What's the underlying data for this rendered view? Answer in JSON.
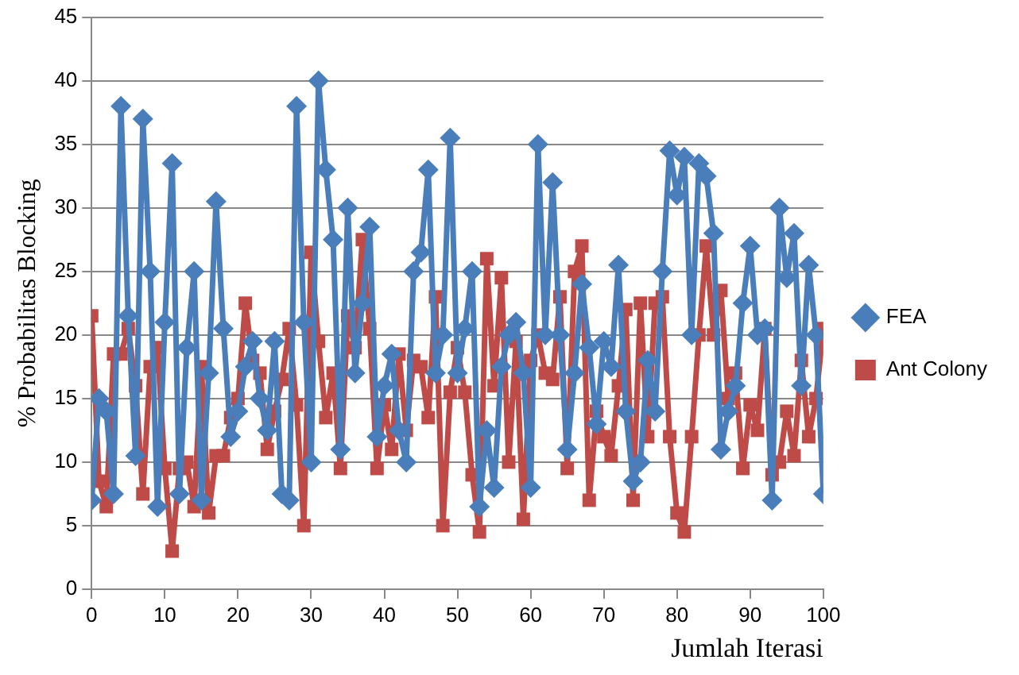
{
  "chart_data": {
    "type": "line",
    "xlabel": "Jumlah Iterasi",
    "ylabel": "% Probabilitas Blocking",
    "x": [
      0,
      1,
      2,
      3,
      4,
      5,
      6,
      7,
      8,
      9,
      10,
      11,
      12,
      13,
      14,
      15,
      16,
      17,
      18,
      19,
      20,
      21,
      22,
      23,
      24,
      25,
      26,
      27,
      28,
      29,
      30,
      31,
      32,
      33,
      34,
      35,
      36,
      37,
      38,
      39,
      40,
      41,
      42,
      43,
      44,
      45,
      46,
      47,
      48,
      49,
      50,
      51,
      52,
      53,
      54,
      55,
      56,
      57,
      58,
      59,
      60,
      61,
      62,
      63,
      64,
      65,
      66,
      67,
      68,
      69,
      70,
      71,
      72,
      73,
      74,
      75,
      76,
      77,
      78,
      79,
      80,
      81,
      82,
      83,
      84,
      85,
      86,
      87,
      88,
      89,
      90,
      91,
      92,
      93,
      94,
      95,
      96,
      97,
      98,
      99,
      100
    ],
    "series": [
      {
        "name": "FEA",
        "color": "#4a7ebb",
        "marker": "diamond",
        "values": [
          7,
          15,
          14,
          7.5,
          38,
          21.5,
          10.5,
          37,
          25,
          6.5,
          21,
          33.5,
          7.5,
          19,
          25,
          7,
          17,
          30.5,
          20.5,
          12,
          14,
          17.5,
          19.5,
          15,
          12.5,
          19.5,
          7.5,
          7,
          38,
          21,
          10,
          40,
          33,
          27.5,
          11,
          30,
          17,
          22.5,
          28.5,
          12,
          16,
          18.5,
          12.5,
          10,
          25,
          26.5,
          33,
          17,
          20,
          35.5,
          17,
          20.5,
          25,
          6.5,
          12.5,
          8,
          17.5,
          20,
          21,
          17,
          8,
          35,
          20,
          32,
          20,
          11,
          17,
          24,
          19,
          13,
          19.5,
          17.5,
          25.5,
          14,
          8.5,
          10,
          18,
          14,
          25,
          34.5,
          31,
          34,
          20,
          33.5,
          32.5,
          28,
          11,
          14,
          16,
          22.5,
          27,
          20,
          20.5,
          7,
          30,
          24.5,
          28,
          16,
          25.5,
          20,
          7.5
        ]
      },
      {
        "name": "Ant Colony",
        "color": "#be4b48",
        "marker": "square",
        "values": [
          21.5,
          8.5,
          6.5,
          18.5,
          18.5,
          20.5,
          16,
          7.5,
          17.5,
          19,
          9.5,
          3,
          9.5,
          10,
          6.5,
          17.5,
          6,
          10.5,
          10.5,
          13.5,
          15,
          22.5,
          18,
          17,
          11,
          14,
          16.5,
          20.5,
          14.5,
          5,
          26.5,
          19.5,
          13.5,
          17,
          9.5,
          21.5,
          19,
          27.5,
          20.5,
          9.5,
          14.5,
          11,
          18.5,
          12.5,
          18,
          17.5,
          13.5,
          23,
          5,
          15.5,
          19,
          15.5,
          9,
          4.5,
          26,
          16,
          24.5,
          10,
          19.5,
          5.5,
          18,
          20,
          17,
          16.5,
          23,
          9.5,
          25,
          27,
          7,
          14,
          12,
          10.5,
          16,
          22,
          7,
          22.5,
          12,
          22.5,
          23,
          12,
          6,
          4.5,
          12,
          20,
          27,
          20,
          23.5,
          15,
          17,
          9.5,
          14.5,
          12.5,
          20.5,
          9,
          10,
          14,
          10.5,
          18,
          12,
          15,
          20.5
        ]
      }
    ],
    "xlim": [
      0,
      100
    ],
    "xticks": [
      0,
      10,
      20,
      30,
      40,
      50,
      60,
      70,
      80,
      90,
      100
    ],
    "ylim": [
      0,
      45
    ],
    "yticks": [
      0,
      5,
      10,
      15,
      20,
      25,
      30,
      35,
      40,
      45
    ],
    "grid": "y",
    "legend": "right"
  }
}
